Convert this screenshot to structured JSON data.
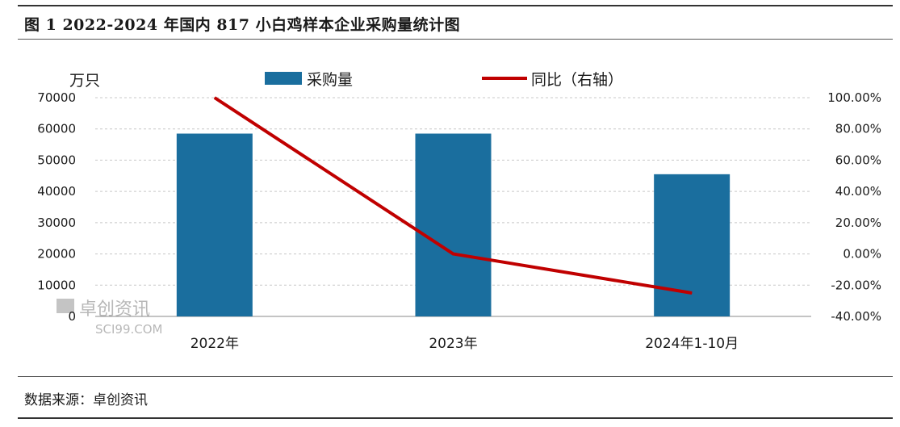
{
  "figure": {
    "title": "图 1 2022-2024 年国内 817 小白鸡样本企业采购量统计图",
    "source": "数据来源：卓创资讯"
  },
  "watermark": {
    "cn": "卓创资讯",
    "en": "SCI99.COM"
  },
  "colors": {
    "bar": "#1a6e9e",
    "line": "#c00000",
    "grid": "#c8c8c8"
  },
  "chart_data": {
    "type": "bar",
    "categories": [
      "2022年",
      "2023年",
      "2024年1-10月"
    ],
    "left_axis": {
      "unit_label": "万只",
      "ylim": [
        0,
        70000
      ],
      "ticks": [
        "70000",
        "60000",
        "50000",
        "40000",
        "30000",
        "20000",
        "10000",
        "0"
      ]
    },
    "right_axis": {
      "ylim": [
        -40,
        100
      ],
      "ticks": [
        "100.00%",
        "80.00%",
        "60.00%",
        "40.00%",
        "20.00%",
        "0.00%",
        "-20.00%",
        "-40.00%"
      ]
    },
    "series": [
      {
        "name": "采购量",
        "type": "bar",
        "axis": "left",
        "values": [
          58500,
          58500,
          45500
        ]
      },
      {
        "name": "同比（右轴）",
        "type": "line",
        "axis": "right",
        "values": [
          100,
          0,
          -25
        ]
      }
    ],
    "grid": true,
    "legend_position": "top"
  }
}
